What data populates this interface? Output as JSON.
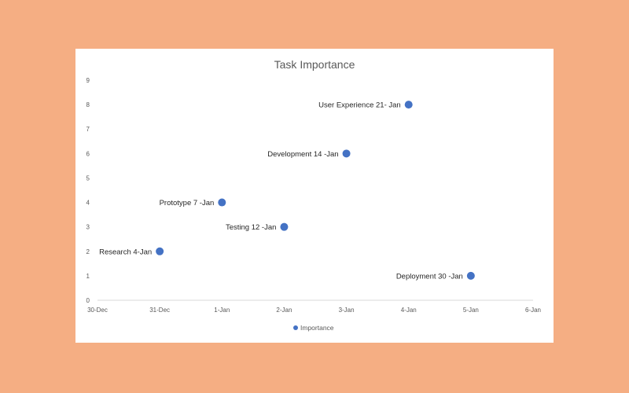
{
  "chart_data": {
    "type": "scatter",
    "title": "Task Importance",
    "xlabel": "",
    "ylabel": "",
    "x_ticks": [
      "30-Dec",
      "31-Dec",
      "1-Jan",
      "2-Jan",
      "3-Jan",
      "4-Jan",
      "5-Jan",
      "6-Jan"
    ],
    "y_ticks": [
      "0",
      "1",
      "2",
      "3",
      "4",
      "5",
      "6",
      "7",
      "8",
      "9"
    ],
    "xlim": [
      "30-Dec",
      "6-Jan"
    ],
    "ylim": [
      0,
      9
    ],
    "grid": false,
    "legend": {
      "position": "bottom",
      "entries": [
        "Importance"
      ]
    },
    "series": [
      {
        "name": "Importance",
        "color": "#4472c4",
        "points": [
          {
            "x": "31-Dec",
            "y": 2,
            "label": "Research 4-Jan"
          },
          {
            "x": "1-Jan",
            "y": 4,
            "label": "Prototype 7 -Jan"
          },
          {
            "x": "2-Jan",
            "y": 3,
            "label": "Testing 12 -Jan"
          },
          {
            "x": "3-Jan",
            "y": 6,
            "label": "Development 14 -Jan"
          },
          {
            "x": "4-Jan",
            "y": 8,
            "label": "User Experience 21- Jan"
          },
          {
            "x": "5-Jan",
            "y": 1,
            "label": "Deployment 30 -Jan"
          }
        ]
      }
    ]
  }
}
